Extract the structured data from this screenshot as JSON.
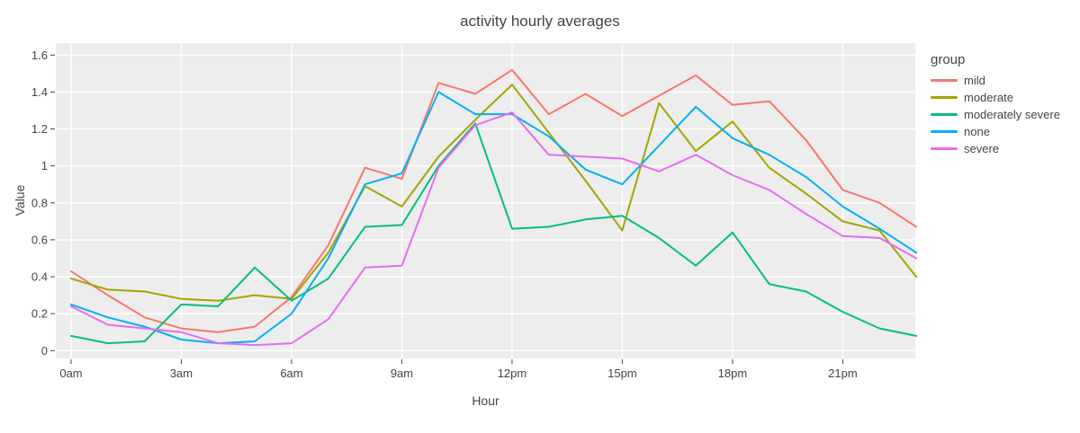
{
  "title": "activity hourly averages",
  "legend": {
    "title": "group",
    "position": "right"
  },
  "colors": {
    "plot_background": "#EDEDED",
    "gridline": "#FFFFFF",
    "text": "#444444",
    "tick": "#444444"
  },
  "chart_data": {
    "type": "line",
    "title": "activity hourly averages",
    "xlabel": "Hour",
    "ylabel": "Value",
    "grid": true,
    "legend_title": "group",
    "legend_position": "right",
    "x": [
      0,
      1,
      2,
      3,
      4,
      5,
      6,
      7,
      8,
      9,
      10,
      11,
      12,
      13,
      14,
      15,
      16,
      17,
      18,
      19,
      20,
      21,
      22,
      23
    ],
    "x_tick_positions": [
      0,
      3,
      6,
      9,
      12,
      15,
      18,
      21
    ],
    "x_tick_labels": [
      "0am",
      "3am",
      "6am",
      "9am",
      "12pm",
      "15pm",
      "18pm",
      "21pm"
    ],
    "y_tick_values": [
      0,
      0.2,
      0.4,
      0.6,
      0.8,
      1.0,
      1.2,
      1.4,
      1.6
    ],
    "y_tick_labels": [
      "0",
      "0.2",
      "0.4",
      "0.6",
      "0.8",
      "1",
      "1.2",
      "1.4",
      "1.6"
    ],
    "ylim": [
      -0.05,
      1.67
    ],
    "xlim": [
      -0.42,
      23.05
    ],
    "series": [
      {
        "name": "mild",
        "color": "#F8766D",
        "values": [
          0.43,
          0.3,
          0.18,
          0.12,
          0.1,
          0.13,
          0.29,
          0.57,
          0.99,
          0.93,
          1.45,
          1.39,
          1.52,
          1.28,
          1.39,
          1.27,
          1.38,
          1.49,
          1.33,
          1.35,
          1.14,
          0.87,
          0.8,
          0.67
        ]
      },
      {
        "name": "moderate",
        "color": "#A3A500",
        "values": [
          0.39,
          0.33,
          0.32,
          0.28,
          0.27,
          0.3,
          0.28,
          0.53,
          0.89,
          0.78,
          1.05,
          1.25,
          1.44,
          1.18,
          0.92,
          0.65,
          1.34,
          1.08,
          1.24,
          0.99,
          0.85,
          0.7,
          0.65,
          0.4
        ]
      },
      {
        "name": "moderately severe",
        "color": "#00BF7D",
        "values": [
          0.08,
          0.04,
          0.05,
          0.25,
          0.24,
          0.45,
          0.27,
          0.39,
          0.67,
          0.68,
          1.0,
          1.23,
          0.66,
          0.67,
          0.71,
          0.73,
          0.61,
          0.46,
          0.64,
          0.36,
          0.32,
          0.21,
          0.12,
          0.08
        ]
      },
      {
        "name": "none",
        "color": "#00B0F6",
        "values": [
          0.25,
          0.18,
          0.13,
          0.06,
          0.04,
          0.05,
          0.2,
          0.5,
          0.9,
          0.96,
          1.4,
          1.28,
          1.28,
          1.16,
          0.98,
          0.9,
          1.11,
          1.32,
          1.15,
          1.06,
          0.94,
          0.78,
          0.66,
          0.53
        ]
      },
      {
        "name": "severe",
        "color": "#E76BF3",
        "values": [
          0.24,
          0.14,
          0.12,
          0.1,
          0.04,
          0.03,
          0.04,
          0.17,
          0.45,
          0.46,
          0.99,
          1.22,
          1.29,
          1.06,
          1.05,
          1.04,
          0.97,
          1.06,
          0.95,
          0.87,
          0.74,
          0.62,
          0.61,
          0.5
        ]
      }
    ]
  }
}
